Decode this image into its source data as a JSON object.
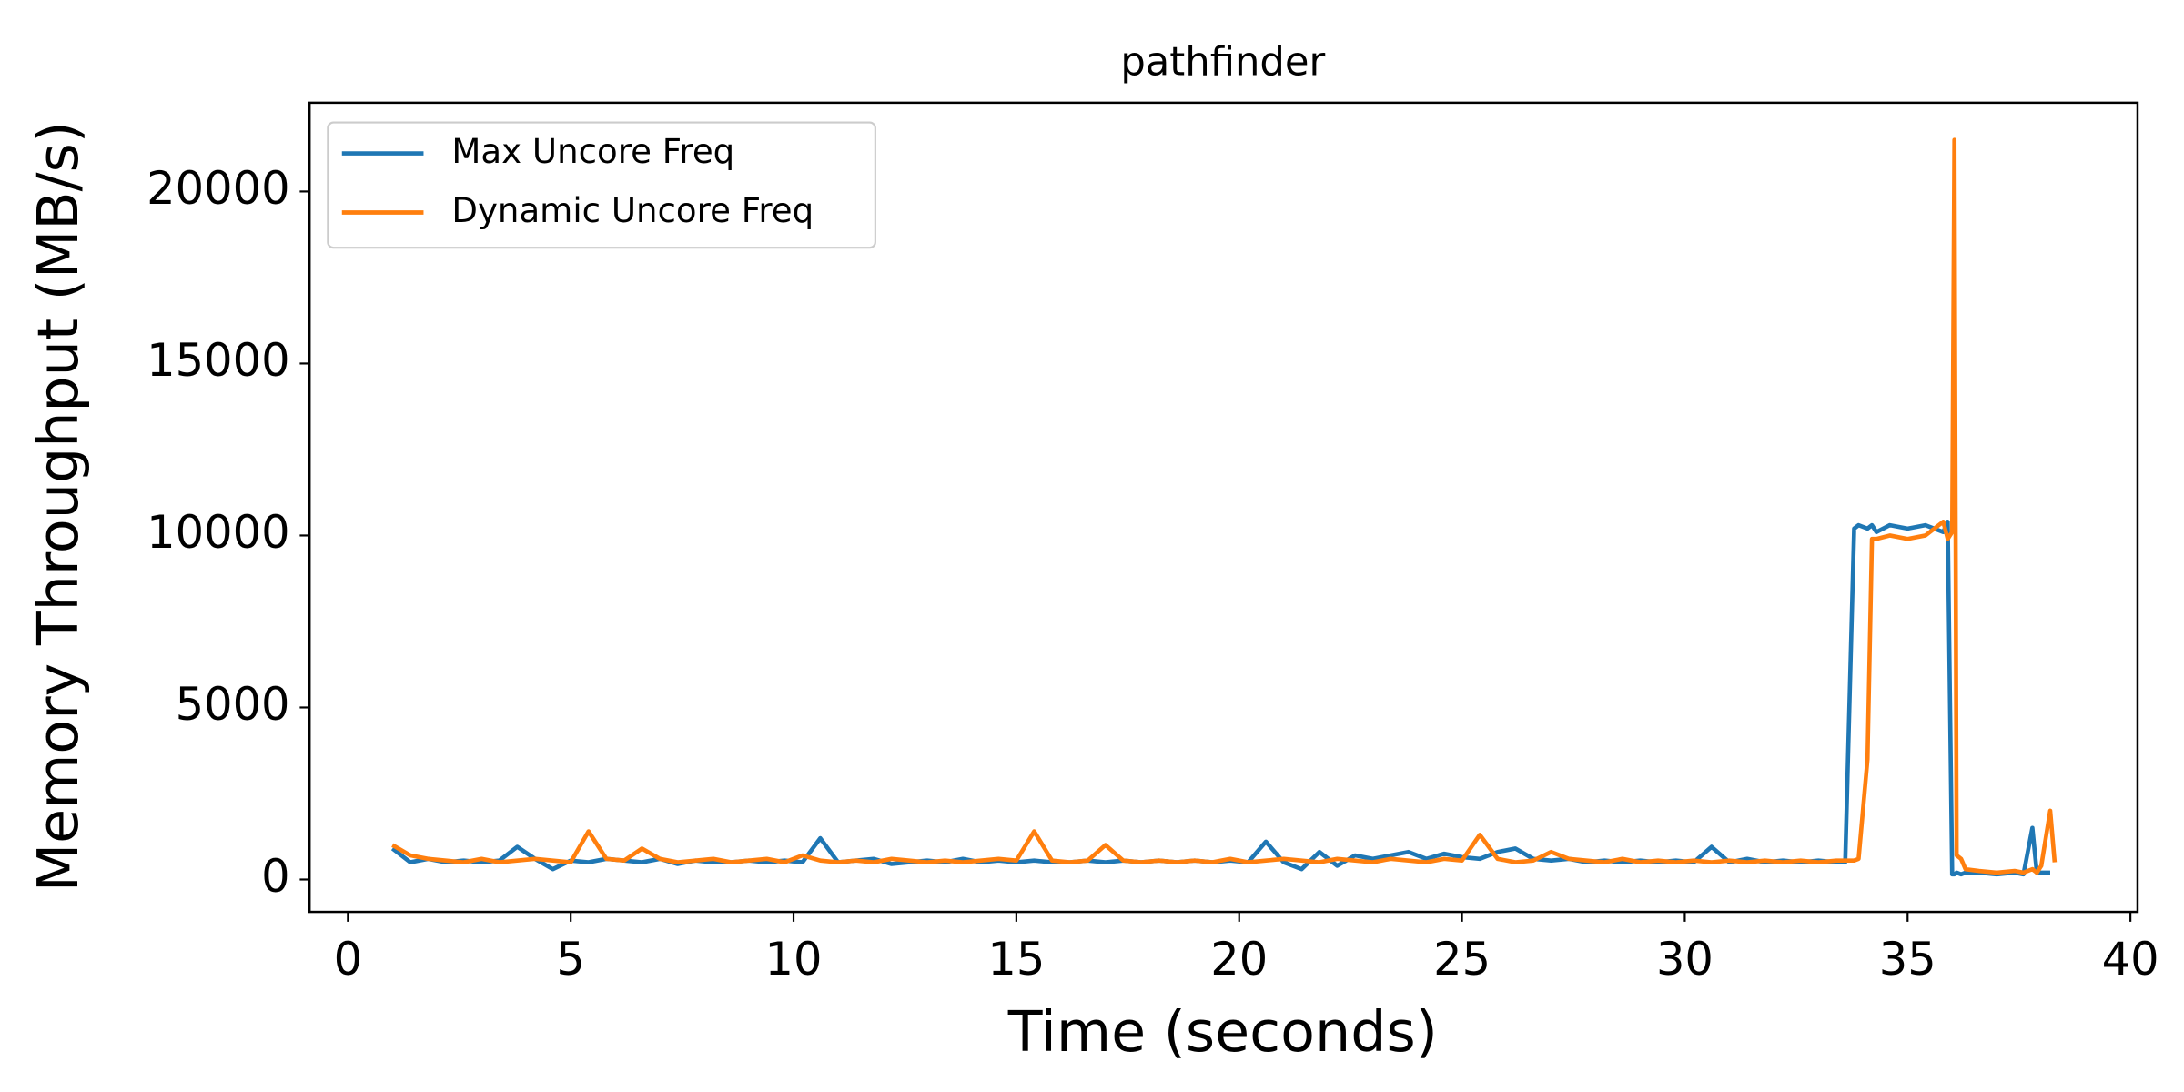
{
  "chart_data": {
    "type": "line",
    "title": "pathfinder",
    "x_label": "Time (seconds)",
    "y_label": "Memory Throughput (MB/s)",
    "x": [
      1.0,
      1.4,
      1.8,
      2.2,
      2.6,
      3.0,
      3.4,
      3.8,
      4.2,
      4.6,
      5.0,
      5.4,
      5.8,
      6.2,
      6.6,
      7.0,
      7.4,
      7.8,
      8.2,
      8.6,
      9.0,
      9.4,
      9.8,
      10.2,
      10.6,
      11.0,
      11.4,
      11.8,
      12.2,
      12.6,
      13.0,
      13.4,
      13.8,
      14.2,
      14.6,
      15.0,
      15.4,
      15.8,
      16.2,
      16.6,
      17.0,
      17.4,
      17.8,
      18.2,
      18.6,
      19.0,
      19.4,
      19.8,
      20.2,
      20.6,
      21.0,
      21.4,
      21.8,
      22.2,
      22.6,
      23.0,
      23.4,
      23.8,
      24.2,
      24.6,
      25.0,
      25.4,
      25.8,
      26.2,
      26.6,
      27.0,
      27.4,
      27.8,
      28.2,
      28.6,
      29.0,
      29.4,
      29.8,
      30.2,
      30.6,
      31.0,
      31.4,
      31.8,
      32.2,
      32.6,
      33.0,
      33.4,
      33.6,
      33.8,
      33.9,
      34.1,
      34.2,
      34.3,
      34.6,
      35.0,
      35.4,
      35.8,
      35.9,
      36.0,
      36.05,
      36.1,
      36.2,
      36.3,
      36.6,
      37.0,
      37.4,
      37.6,
      37.8,
      37.9,
      38.0,
      38.2,
      38.3
    ],
    "series": [
      {
        "name": "Max Uncore Freq",
        "color": "#1f77b4",
        "values": [
          900,
          500,
          600,
          500,
          550,
          500,
          550,
          950,
          600,
          300,
          550,
          500,
          600,
          550,
          500,
          600,
          450,
          550,
          500,
          500,
          550,
          500,
          550,
          500,
          1200,
          500,
          550,
          600,
          450,
          500,
          550,
          500,
          600,
          500,
          550,
          500,
          550,
          500,
          500,
          550,
          500,
          550,
          500,
          550,
          500,
          550,
          500,
          550,
          500,
          1100,
          500,
          300,
          800,
          400,
          700,
          600,
          700,
          800,
          600,
          750,
          650,
          600,
          800,
          900,
          600,
          550,
          600,
          500,
          550,
          500,
          550,
          500,
          550,
          500,
          950,
          500,
          600,
          500,
          550,
          500,
          550,
          500,
          500,
          10200,
          10300,
          10200,
          10300,
          10100,
          10300,
          10200,
          10300,
          10100,
          10400,
          150,
          150,
          200,
          150,
          200,
          200,
          150,
          200,
          150,
          1500,
          200,
          200,
          200,
          null
        ]
      },
      {
        "name": "Dynamic Uncore Freq",
        "color": "#ff7f0e",
        "values": [
          1000,
          700,
          600,
          550,
          500,
          600,
          500,
          550,
          600,
          550,
          500,
          1400,
          600,
          550,
          900,
          600,
          500,
          550,
          600,
          500,
          550,
          600,
          500,
          700,
          550,
          500,
          550,
          500,
          600,
          550,
          500,
          550,
          500,
          550,
          600,
          550,
          1400,
          550,
          500,
          550,
          1000,
          550,
          500,
          550,
          500,
          550,
          500,
          600,
          500,
          550,
          600,
          550,
          500,
          600,
          550,
          500,
          600,
          550,
          500,
          600,
          550,
          1300,
          600,
          500,
          550,
          800,
          600,
          550,
          500,
          600,
          500,
          550,
          500,
          550,
          500,
          550,
          500,
          550,
          500,
          550,
          500,
          550,
          550,
          550,
          600,
          3500,
          9900,
          9900,
          10000,
          9900,
          10000,
          10400,
          9900,
          10100,
          21500,
          700,
          600,
          300,
          250,
          200,
          250,
          200,
          300,
          200,
          400,
          2000,
          500
        ]
      }
    ],
    "xlim": [
      -0.86,
      40.16
    ],
    "ylim": [
      -941,
      22580
    ],
    "xticks": [
      0,
      5,
      10,
      15,
      20,
      25,
      30,
      35,
      40
    ],
    "yticks": [
      0,
      5000,
      10000,
      15000,
      20000
    ],
    "legend": "upper left"
  }
}
